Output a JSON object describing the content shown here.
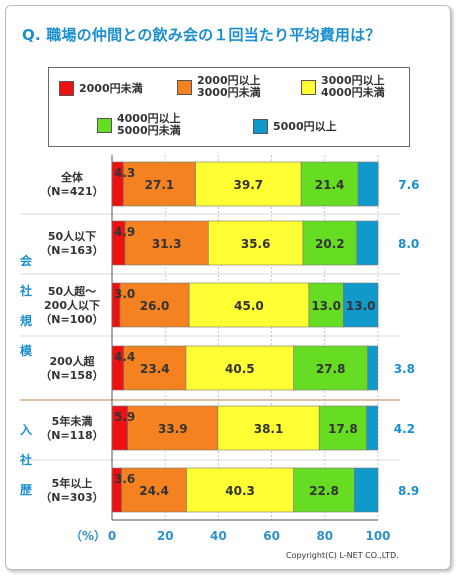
{
  "title": "Q. 職場の仲間との飲み会の１回当たり平均費用は？",
  "copyright": "Copyright(C) L-NET CO.,LTD.",
  "legend": [
    {
      "label": "2000円未満",
      "color": "#ee1111"
    },
    {
      "label": "2000円以上\n3000円未満",
      "color": "#f58220"
    },
    {
      "label": "3000円以上\n4000円未満",
      "color": "#ffff33"
    },
    {
      "label": "4000円以上\n5000円未満",
      "color": "#66dd22"
    },
    {
      "label": "5000円以上",
      "color": "#1199cc"
    }
  ],
  "chart_data": {
    "type": "bar",
    "orientation": "horizontal-stacked-100",
    "xlabel": "（%）",
    "xlim": [
      0,
      100
    ],
    "xticks": [
      "0",
      "20",
      "40",
      "60",
      "80",
      "100"
    ],
    "groups": [
      {
        "label": "",
        "rows": [
          0
        ]
      },
      {
        "label": "会社規模",
        "rows": [
          1,
          2,
          3
        ]
      },
      {
        "label": "入社歴",
        "rows": [
          4,
          5
        ]
      }
    ],
    "categories": [
      "全体\n（N=421）",
      "50人以下\n（N=163）",
      "50人超～\n200人以下\n（N=100）",
      "200人超\n（N=158）",
      "5年未満\n（N=118）",
      "5年以上\n（N=303）"
    ],
    "series": [
      {
        "name": "2000円未満",
        "color": "#ee1111",
        "values": [
          4.3,
          4.9,
          3.0,
          4.4,
          5.9,
          3.6
        ]
      },
      {
        "name": "2000円以上3000円未満",
        "color": "#f58220",
        "values": [
          27.1,
          31.3,
          26.0,
          23.4,
          33.9,
          24.4
        ]
      },
      {
        "name": "3000円以上4000円未満",
        "color": "#ffff33",
        "values": [
          39.7,
          35.6,
          45.0,
          40.5,
          38.1,
          40.3
        ]
      },
      {
        "name": "4000円以上5000円未満",
        "color": "#66dd22",
        "values": [
          21.4,
          20.2,
          13.0,
          27.8,
          17.8,
          22.8
        ]
      },
      {
        "name": "5000円以上",
        "color": "#1199cc",
        "values": [
          7.6,
          8.0,
          13.0,
          3.8,
          4.2,
          8.9
        ]
      }
    ],
    "labels": [
      [
        "4.3",
        "27.1",
        "39.7",
        "21.4",
        "7.6"
      ],
      [
        "4.9",
        "31.3",
        "35.6",
        "20.2",
        "8.0"
      ],
      [
        "3.0",
        "26.0",
        "45.0",
        "13.0",
        "13.0"
      ],
      [
        "4.4",
        "23.4",
        "40.5",
        "27.8",
        "3.8"
      ],
      [
        "5.9",
        "33.9",
        "38.1",
        "17.8",
        "4.2"
      ],
      [
        "3.6",
        "24.4",
        "40.3",
        "22.8",
        "8.9"
      ]
    ]
  }
}
